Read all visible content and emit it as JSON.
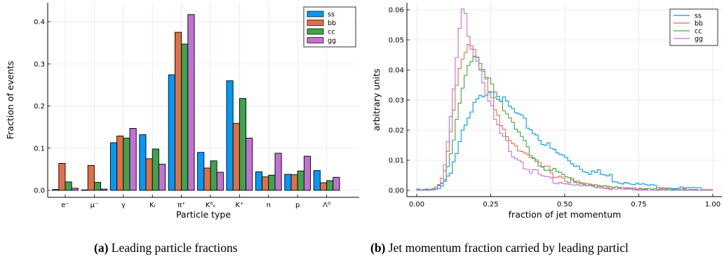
{
  "chart_data": [
    {
      "type": "bar",
      "xlabel": "Particle type",
      "ylabel": "Fraction of events",
      "ylim": [
        0,
        0.42
      ],
      "yticks": [
        0.0,
        0.1,
        0.2,
        0.3,
        0.4
      ],
      "ytick_labels": [
        "0.0",
        "0.1",
        "0.2",
        "0.3",
        "0.4"
      ],
      "grid": true,
      "legend_position": "top-right",
      "categories": [
        "e⁻",
        "μ⁻",
        "γ",
        "Kₗ",
        "π⁺",
        "K⁰ₛ",
        "K⁺",
        "n",
        "p",
        "Λ⁰"
      ],
      "series": [
        {
          "name": "ss",
          "color": "#009AF9",
          "values": [
            0.002,
            0.001,
            0.113,
            0.132,
            0.274,
            0.09,
            0.26,
            0.044,
            0.038,
            0.047
          ]
        },
        {
          "name": "bb",
          "color": "#E26F46",
          "values": [
            0.064,
            0.059,
            0.129,
            0.075,
            0.375,
            0.053,
            0.159,
            0.032,
            0.037,
            0.018
          ]
        },
        {
          "name": "cc",
          "color": "#3DA44D",
          "values": [
            0.02,
            0.019,
            0.124,
            0.098,
            0.347,
            0.07,
            0.218,
            0.036,
            0.046,
            0.023
          ]
        },
        {
          "name": "gg",
          "color": "#C271D2",
          "values": [
            0.005,
            0.003,
            0.147,
            0.062,
            0.417,
            0.043,
            0.124,
            0.088,
            0.081,
            0.031
          ]
        }
      ]
    },
    {
      "type": "line",
      "xlabel": "fraction of jet momentum",
      "ylabel": "arbitrary units",
      "xlim": [
        0,
        1
      ],
      "ylim": [
        0,
        0.063
      ],
      "xticks": [
        0,
        0.25,
        0.5,
        0.75,
        1.0
      ],
      "xtick_labels": [
        "0.00",
        "0.25",
        "0.50",
        "0.75",
        "1.00"
      ],
      "yticks": [
        0,
        0.01,
        0.02,
        0.03,
        0.04,
        0.05,
        0.06
      ],
      "ytick_labels": [
        "0.00",
        "0.01",
        "0.02",
        "0.03",
        "0.04",
        "0.05",
        "0.06"
      ],
      "grid": true,
      "legend_position": "top-right",
      "x": [
        0.0,
        0.05,
        0.07,
        0.09,
        0.1,
        0.11,
        0.12,
        0.13,
        0.14,
        0.15,
        0.16,
        0.17,
        0.18,
        0.19,
        0.2,
        0.21,
        0.22,
        0.23,
        0.24,
        0.25,
        0.26,
        0.27,
        0.28,
        0.3,
        0.32,
        0.34,
        0.36,
        0.38,
        0.4,
        0.42,
        0.44,
        0.46,
        0.48,
        0.5,
        0.55,
        0.6,
        0.65,
        0.7,
        0.75,
        0.8,
        0.85,
        0.9,
        0.95,
        1.0
      ],
      "series": [
        {
          "name": "ss",
          "color": "#009AF9",
          "values": [
            0,
            0,
            0.0005,
            0.002,
            0.004,
            0.006,
            0.008,
            0.011,
            0.014,
            0.017,
            0.02,
            0.022,
            0.024,
            0.027,
            0.029,
            0.03,
            0.031,
            0.033,
            0.033,
            0.034,
            0.033,
            0.032,
            0.031,
            0.029,
            0.027,
            0.025,
            0.023,
            0.021,
            0.019,
            0.017,
            0.015,
            0.013,
            0.012,
            0.011,
            0.008,
            0.006,
            0.0045,
            0.003,
            0.002,
            0.0015,
            0.001,
            0.0007,
            0.0005,
            0.0003
          ]
        },
        {
          "name": "bb",
          "color": "#E26F46",
          "values": [
            0,
            0,
            0.001,
            0.004,
            0.009,
            0.015,
            0.022,
            0.03,
            0.037,
            0.043,
            0.046,
            0.048,
            0.049,
            0.048,
            0.046,
            0.043,
            0.04,
            0.037,
            0.034,
            0.031,
            0.028,
            0.025,
            0.022,
            0.019,
            0.017,
            0.015,
            0.013,
            0.011,
            0.009,
            0.008,
            0.007,
            0.006,
            0.005,
            0.004,
            0.0025,
            0.0015,
            0.001,
            0.0007,
            0.0004,
            0.0003,
            0.0002,
            0.0001,
            0.0001,
            0
          ]
        },
        {
          "name": "cc",
          "color": "#3DA44D",
          "values": [
            0,
            0,
            0.001,
            0.003,
            0.006,
            0.01,
            0.015,
            0.021,
            0.027,
            0.032,
            0.036,
            0.039,
            0.041,
            0.043,
            0.044,
            0.043,
            0.041,
            0.039,
            0.038,
            0.037,
            0.035,
            0.033,
            0.031,
            0.027,
            0.023,
            0.019,
            0.016,
            0.013,
            0.011,
            0.009,
            0.007,
            0.006,
            0.005,
            0.004,
            0.0025,
            0.0015,
            0.001,
            0.0006,
            0.0004,
            0.0002,
            0.0001,
            0.0001,
            0,
            0
          ]
        },
        {
          "name": "gg",
          "color": "#C271D2",
          "values": [
            0,
            0,
            0.001,
            0.005,
            0.011,
            0.019,
            0.028,
            0.039,
            0.049,
            0.058,
            0.061,
            0.055,
            0.05,
            0.047,
            0.045,
            0.042,
            0.039,
            0.035,
            0.031,
            0.028,
            0.025,
            0.022,
            0.019,
            0.016,
            0.013,
            0.011,
            0.009,
            0.007,
            0.006,
            0.005,
            0.004,
            0.0035,
            0.003,
            0.0025,
            0.0015,
            0.001,
            0.0006,
            0.0004,
            0.0002,
            0.0001,
            0.0001,
            0,
            0,
            0
          ]
        }
      ]
    }
  ],
  "captions": {
    "a_tag": "(a)",
    "a_text": "Leading particle fractions",
    "b_tag": "(b)",
    "b_text": "Jet momentum fraction carried by leading particl"
  }
}
